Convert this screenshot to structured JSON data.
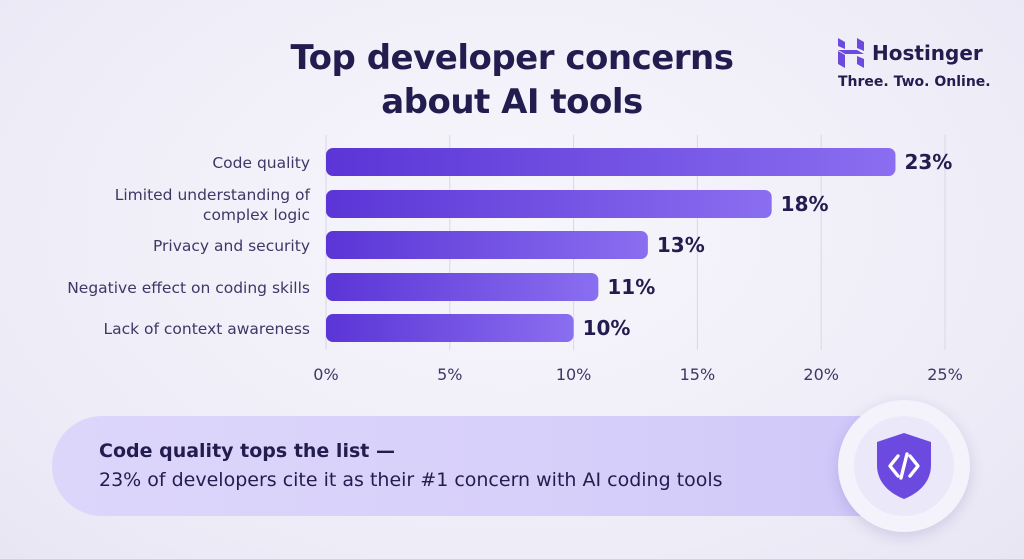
{
  "title_line1": "Top developer concerns",
  "title_line2": "about AI tools",
  "brand": {
    "name": "Hostinger",
    "tagline": "Three. Two. Online.",
    "logo_icon": "hostinger-h-logo"
  },
  "colors": {
    "bar_start": "#5b35d6",
    "bar_end": "#8a6ef0",
    "text_dark": "#231d4f",
    "axis_text": "#3d3866"
  },
  "chart_data": {
    "type": "bar",
    "orientation": "horizontal",
    "categories": [
      [
        "Code quality"
      ],
      [
        "Limited understanding of",
        "complex logic"
      ],
      [
        "Privacy and security"
      ],
      [
        "Negative effect on coding skills"
      ],
      [
        "Lack of context awareness"
      ]
    ],
    "values": [
      23,
      18,
      13,
      11,
      10
    ],
    "value_labels": [
      "23%",
      "18%",
      "13%",
      "11%",
      "10%"
    ],
    "xlim": [
      0,
      25
    ],
    "xticks": [
      0,
      5,
      10,
      15,
      20,
      25
    ],
    "xtick_labels": [
      "0%",
      "5%",
      "10%",
      "15%",
      "20%",
      "25%"
    ],
    "grid": "vertical"
  },
  "callout": {
    "heading": "Code quality tops the list —",
    "text": "23% of developers cite it as their #1 concern with AI coding tools",
    "icon": "shield-code-icon"
  }
}
